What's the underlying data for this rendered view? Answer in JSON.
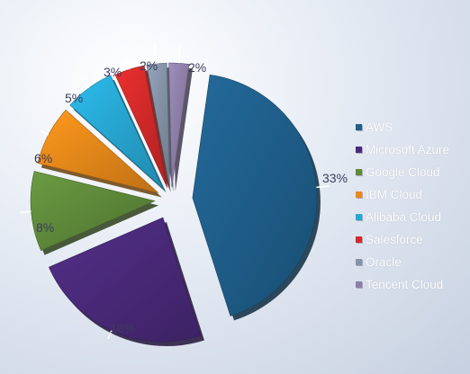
{
  "chart_data": {
    "type": "pie",
    "title": "",
    "categories": [
      "AWS",
      "Microsoft Azure",
      "Google Cloud",
      "IBM Cloud",
      "Alibaba Cloud",
      "Salesforce",
      "Oracle",
      "Tencent Cloud"
    ],
    "values": [
      33,
      18,
      8,
      6,
      5,
      3,
      2,
      2
    ],
    "labels": [
      "33%",
      "18%",
      "8%",
      "6%",
      "5%",
      "3%",
      "2%",
      "2%"
    ],
    "colors": [
      "#1f5f8b",
      "#4a2a7a",
      "#5f8a3a",
      "#e8891a",
      "#27a8d4",
      "#d42a2a",
      "#8593a8",
      "#8d7fa8"
    ],
    "exploded": true,
    "legend_position": "right"
  }
}
